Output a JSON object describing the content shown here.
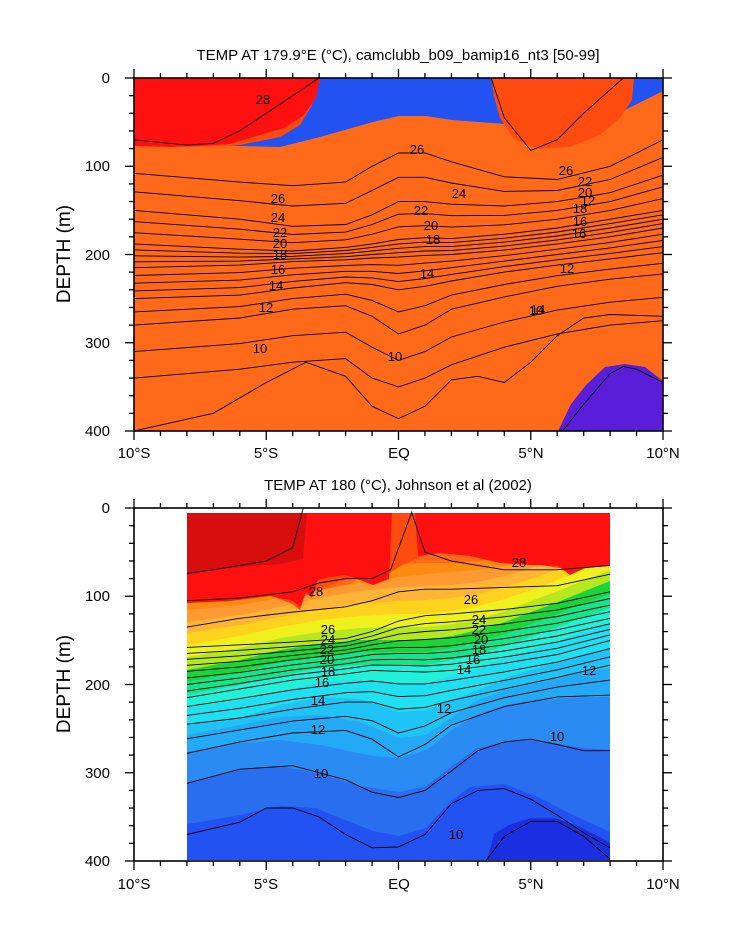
{
  "colors": {
    "scale": [
      "#1a2fe0",
      "#2252f2",
      "#2a6ef0",
      "#2a8cf2",
      "#23a9f5",
      "#20c3f5",
      "#1ee0f0",
      "#22f0d8",
      "#14e48a",
      "#1ad43a",
      "#b6e820",
      "#f0f01e",
      "#ffd21e",
      "#ffb435",
      "#ff9a33",
      "#ff8c10",
      "#ff6a1a",
      "#ff4a10",
      "#ff1010",
      "#d80e0e"
    ],
    "deep_purple": "#5b1ed8",
    "background": "#ffffff"
  },
  "chart_data": [
    {
      "type": "contour",
      "title": "TEMP AT 179.9°E (°C), camclubb_b09_bamip16_nt3 [50-99]",
      "ylabel": "DEPTH (m)",
      "xlabel": "",
      "xlim": [
        -10,
        10
      ],
      "ylim": [
        400,
        0
      ],
      "x_ticks": [
        "10°S",
        "5°S",
        "EQ",
        "5°N",
        "10°N"
      ],
      "y_ticks": [
        "0",
        "100",
        "200",
        "300",
        "400"
      ],
      "contour_interval": 1,
      "contour_labels": [
        "28",
        "26",
        "26",
        "26",
        "24",
        "24",
        "22",
        "22",
        "20",
        "20",
        "18",
        "18",
        "16",
        "16",
        "14",
        "14",
        "12",
        "12",
        "10",
        "10",
        "22",
        "20",
        "18",
        "16",
        "14",
        "12",
        "10"
      ],
      "isotherms": [
        {
          "level": 28.5,
          "x": [
            -10,
            -8,
            -7,
            -6,
            -5,
            -4,
            -3
          ],
          "y": [
            70,
            76,
            74,
            60,
            40,
            20,
            0
          ]
        },
        {
          "level": 28.5,
          "x": [
            3.5,
            4,
            5,
            6,
            7,
            8.5
          ],
          "y": [
            0,
            45,
            82,
            70,
            40,
            0
          ]
        },
        {
          "level": 26.5,
          "x": [
            -10,
            -6,
            -4,
            -2,
            -1,
            0,
            1,
            2,
            4,
            6,
            8,
            10
          ],
          "y": [
            108,
            118,
            122,
            118,
            100,
            85,
            85,
            95,
            112,
            115,
            100,
            70
          ]
        },
        {
          "level": 25,
          "x": [
            -10,
            -6,
            -4,
            -2,
            -1,
            0,
            1,
            2,
            4,
            6,
            8,
            10
          ],
          "y": [
            150,
            160,
            168,
            166,
            155,
            140,
            140,
            143,
            145,
            140,
            130,
            110
          ]
        },
        {
          "level": 22,
          "x": [
            -10,
            -6,
            -4,
            -2,
            -1,
            0,
            1,
            2,
            4,
            6,
            8,
            10
          ],
          "y": [
            188,
            194,
            196,
            192,
            188,
            183,
            181,
            182,
            177,
            170,
            160,
            150
          ]
        },
        {
          "level": 18,
          "x": [
            -10,
            -6,
            -4,
            -2,
            -1,
            0,
            1,
            2,
            4,
            6,
            8,
            10
          ],
          "y": [
            215,
            212,
            208,
            206,
            204,
            203,
            201,
            200,
            195,
            188,
            180,
            170
          ]
        },
        {
          "level": 14,
          "x": [
            -10,
            -6,
            -4,
            -2,
            -1,
            0,
            1,
            2,
            4,
            6,
            8,
            10
          ],
          "y": [
            250,
            246,
            238,
            232,
            234,
            240,
            236,
            230,
            220,
            212,
            205,
            198
          ]
        },
        {
          "level": 12,
          "x": [
            -10,
            -6,
            -4,
            -2,
            -1,
            0,
            1,
            2,
            4,
            6,
            8,
            10
          ],
          "y": [
            280,
            272,
            262,
            258,
            270,
            290,
            280,
            262,
            248,
            236,
            228,
            222
          ]
        },
        {
          "level": 10,
          "x": [
            -10,
            -6,
            -4,
            -2,
            -1,
            0,
            1,
            2,
            4,
            6,
            8,
            10
          ],
          "y": [
            340,
            330,
            322,
            318,
            340,
            350,
            340,
            325,
            305,
            290,
            280,
            275
          ]
        },
        {
          "level": 9,
          "x": [
            -10,
            -7,
            -5,
            -3.5,
            -2,
            -1,
            0,
            1,
            2,
            3,
            4,
            5,
            6,
            7,
            8,
            10
          ],
          "y": [
            400,
            380,
            345,
            322,
            338,
            372,
            386,
            372,
            342,
            338,
            345,
            322,
            292,
            272,
            268,
            270
          ]
        },
        {
          "level": 8,
          "x": [
            6.2,
            7,
            8,
            8.5,
            9,
            10
          ],
          "y": [
            400,
            370,
            335,
            327,
            330,
            345
          ]
        }
      ]
    },
    {
      "type": "contour",
      "title": "TEMP AT 180 (°C), Johnson et al (2002)",
      "ylabel": "DEPTH (m)",
      "xlabel": "",
      "xlim": [
        -10,
        10
      ],
      "ylim": [
        400,
        0
      ],
      "x_ticks": [
        "10°S",
        "5°S",
        "EQ",
        "5°N",
        "10°N"
      ],
      "y_ticks": [
        "0",
        "100",
        "200",
        "300",
        "400"
      ],
      "data_x_range": [
        -8,
        8
      ],
      "contour_interval": 1,
      "contour_labels": [
        "28",
        "28",
        "26",
        "26",
        "24",
        "24",
        "22",
        "22",
        "20",
        "20",
        "18",
        "18",
        "16",
        "16",
        "14",
        "14",
        "12",
        "12",
        "12",
        "10",
        "10",
        "10"
      ],
      "isotherms": [
        {
          "level": 29.5,
          "x": [
            -8,
            -7,
            -6,
            -5,
            -4,
            -3.6
          ],
          "y": [
            74,
            70,
            65,
            60,
            45,
            0
          ]
        },
        {
          "level": 28.5,
          "x": [
            -8,
            -6,
            -4,
            -3,
            -2,
            -1,
            -0.3,
            0.5,
            1,
            2,
            4,
            6,
            8
          ],
          "y": [
            105,
            102,
            95,
            85,
            80,
            80,
            70,
            5,
            50,
            60,
            70,
            70,
            65
          ]
        },
        {
          "level": 27,
          "x": [
            -8,
            -6,
            -4,
            -3,
            -2,
            -1,
            0,
            1,
            2,
            4,
            6,
            8
          ],
          "y": [
            135,
            125,
            118,
            115,
            112,
            105,
            95,
            92,
            92,
            90,
            88,
            75
          ]
        },
        {
          "level": 25,
          "x": [
            -8,
            -6,
            -4,
            -2,
            -1,
            0,
            1,
            2,
            4,
            6,
            8
          ],
          "y": [
            158,
            155,
            152,
            148,
            140,
            128,
            122,
            120,
            115,
            108,
            95
          ]
        },
        {
          "level": 21,
          "x": [
            -8,
            -6,
            -4,
            -2,
            -1,
            0,
            1,
            2,
            4,
            6,
            8
          ],
          "y": [
            185,
            180,
            172,
            165,
            160,
            158,
            158,
            156,
            148,
            138,
            125
          ]
        },
        {
          "level": 17,
          "x": [
            -8,
            -6,
            -4,
            -2,
            -1,
            0,
            1,
            2,
            4,
            6,
            8
          ],
          "y": [
            215,
            205,
            195,
            188,
            184,
            185,
            186,
            184,
            176,
            166,
            150
          ]
        },
        {
          "level": 14,
          "x": [
            -8,
            -6,
            -4,
            -2,
            -1,
            0,
            1,
            2,
            4,
            6,
            8
          ],
          "y": [
            245,
            238,
            228,
            220,
            220,
            228,
            226,
            218,
            205,
            192,
            178
          ]
        },
        {
          "level": 12,
          "x": [
            -8,
            -6,
            -4,
            -2,
            -1,
            0,
            1,
            2,
            4,
            6,
            8
          ],
          "y": [
            278,
            265,
            255,
            252,
            262,
            282,
            268,
            246,
            225,
            214,
            212
          ]
        },
        {
          "level": 10.5,
          "x": [
            -8,
            -6,
            -4,
            -2,
            -1,
            0,
            1,
            2,
            3,
            4,
            5,
            6,
            7,
            8
          ],
          "y": [
            312,
            296,
            292,
            308,
            322,
            328,
            320,
            298,
            275,
            265,
            262,
            268,
            275,
            275
          ]
        },
        {
          "level": 10,
          "x": [
            -8,
            -6,
            -5,
            -4,
            -3,
            -2,
            -1,
            0,
            1,
            2,
            3,
            4,
            5,
            6,
            7,
            8
          ],
          "y": [
            370,
            356,
            340,
            340,
            350,
            370,
            385,
            384,
            370,
            335,
            320,
            318,
            330,
            348,
            368,
            385
          ]
        },
        {
          "level": 9,
          "x": [
            3.3,
            4,
            5,
            6,
            7,
            8
          ],
          "y": [
            400,
            372,
            355,
            355,
            372,
            398
          ]
        }
      ]
    }
  ]
}
